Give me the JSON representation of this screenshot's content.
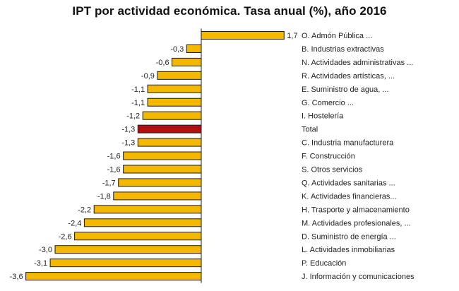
{
  "chart_data": {
    "type": "bar",
    "orientation": "horizontal",
    "title": "IPT por actividad económica. Tasa anual (%), año 2016",
    "xlabel": "",
    "ylabel": "",
    "xlim": [
      -3.6,
      1.7
    ],
    "grid": false,
    "legend": "none",
    "colors": {
      "bar": "#F5B800",
      "highlight": "#B01010",
      "outline": "#1a1a1a",
      "axis": "#1a1a1a"
    },
    "categories": [
      "O. Admón Pública ...",
      "B. Industrias extractivas",
      "N. Actividades administrativas ...",
      "R. Actividades artísticas, ...",
      "E. Suministro de agua, ...",
      "G. Comercio ...",
      "I. Hostelería",
      "Total",
      "C. Industria manufacturera",
      "F. Construcción",
      "S. Otros servicios",
      "Q. Actividades sanitarias ...",
      "K. Actividades financieras...",
      "H. Trasporte y almacenamiento",
      "M. Actividades profesionales, ...",
      "D. Suministro de energía ...",
      "L. Actividades inmobiliarias",
      "P. Educación",
      "J. Información y comunicaciones"
    ],
    "values": [
      1.7,
      -0.3,
      -0.6,
      -0.9,
      -1.1,
      -1.1,
      -1.2,
      -1.3,
      -1.3,
      -1.6,
      -1.6,
      -1.7,
      -1.8,
      -2.2,
      -2.4,
      -2.6,
      -3.0,
      -3.1,
      -3.6
    ],
    "value_labels": [
      "1,7",
      "-0,3",
      "-0,6",
      "-0,9",
      "-1,1",
      "-1,1",
      "-1,2",
      "-1,3",
      "-1,3",
      "-1,6",
      "-1,6",
      "-1,7",
      "-1,8",
      "-2,2",
      "-2,4",
      "-2,6",
      "-3,0",
      "-3,1",
      "-3,6"
    ],
    "highlight_category": "Total"
  }
}
